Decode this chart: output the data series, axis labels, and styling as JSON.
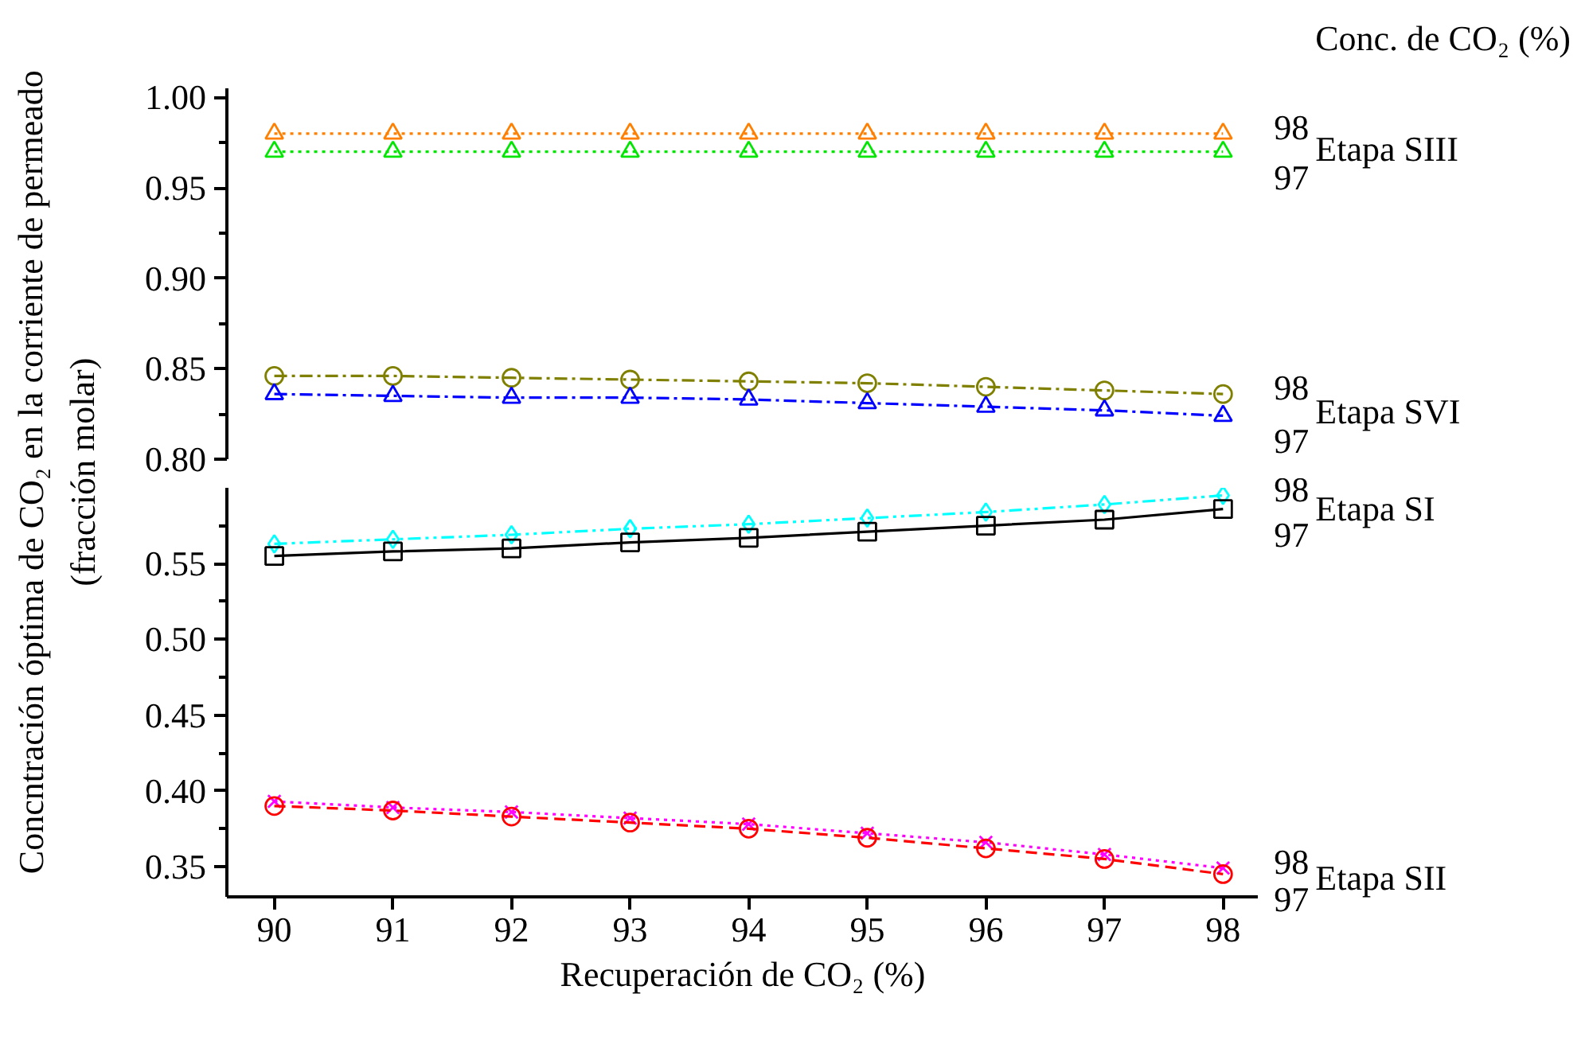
{
  "chart_data": [
    {
      "type": "line",
      "ylabel": "Concntración óptima de CO₂ en la corriente de permeado\n(fracción molar)",
      "annotations": [
        "Conc. de CO₂ (%)",
        "Etapa SIII",
        "Etapa SVI"
      ],
      "x": [
        90,
        91,
        92,
        93,
        94,
        95,
        96,
        97,
        98
      ],
      "ylim": [
        0.8,
        1.005
      ],
      "yticks": [
        {
          "value": 0.8,
          "label": "0.80"
        },
        {
          "value": 0.825,
          "label": null
        },
        0.85,
        {
          "value": 0.875,
          "label": null
        },
        {
          "value": 0.9,
          "label": "0.90"
        },
        {
          "value": 0.925,
          "label": null
        },
        0.95,
        {
          "value": 0.975,
          "label": null
        },
        {
          "value": 1.0,
          "label": "1.00"
        }
      ],
      "tick_labels": "y",
      "legend": false,
      "grid": false,
      "series": [
        {
          "name": "98",
          "color": "#ff8000",
          "marker": "triangle",
          "line_style": "dotted",
          "values": [
            0.98,
            0.98,
            0.98,
            0.98,
            0.98,
            0.98,
            0.98,
            0.98,
            0.98
          ]
        },
        {
          "name": "97",
          "color": "#00e600",
          "marker": "triangle",
          "line_style": "dotted",
          "values": [
            0.97,
            0.97,
            0.97,
            0.97,
            0.97,
            0.97,
            0.97,
            0.97,
            0.97
          ]
        },
        {
          "name": "98",
          "color": "#808000",
          "marker": "circle",
          "line_style": "dashdot",
          "values": [
            0.846,
            0.846,
            0.845,
            0.844,
            0.843,
            0.842,
            0.84,
            0.838,
            0.836
          ]
        },
        {
          "name": "97",
          "color": "#0000ff",
          "marker": "triangle",
          "line_style": "dashdot",
          "values": [
            0.836,
            0.835,
            0.834,
            0.834,
            0.833,
            0.831,
            0.829,
            0.827,
            0.824
          ]
        }
      ]
    },
    {
      "type": "line",
      "xlabel": "Recuperación de CO₂ (%)",
      "annotations": [
        "Etapa SI",
        "Etapa SII"
      ],
      "x": [
        90,
        91,
        92,
        93,
        94,
        95,
        96,
        97,
        98
      ],
      "xlim": [
        89.6,
        98.3
      ],
      "ylim": [
        0.33,
        0.6
      ],
      "xticks": [
        90,
        91,
        92,
        93,
        94,
        95,
        96,
        97,
        98
      ],
      "yticks": [
        0.35,
        {
          "value": 0.375,
          "label": null
        },
        {
          "value": 0.4,
          "label": "0.40"
        },
        {
          "value": 0.425,
          "label": null
        },
        0.45,
        {
          "value": 0.475,
          "label": null
        },
        {
          "value": 0.5,
          "label": "0.50"
        },
        {
          "value": 0.525,
          "label": null
        },
        0.55,
        {
          "value": 0.575,
          "label": null
        }
      ],
      "legend": false,
      "grid": false,
      "series": [
        {
          "name": "98",
          "color": "#00ffff",
          "marker": "diamond",
          "line_style": "dashdotdot",
          "values": [
            0.563,
            0.566,
            0.569,
            0.573,
            0.576,
            0.58,
            0.584,
            0.589,
            0.595
          ]
        },
        {
          "name": "97",
          "color": "#000000",
          "marker": "square",
          "line_style": "solid",
          "values": [
            0.555,
            0.558,
            0.56,
            0.564,
            0.567,
            0.571,
            0.575,
            0.579,
            0.586
          ]
        },
        {
          "name": "98",
          "color": "#ff00ff",
          "marker": "cross",
          "line_style": "dotted",
          "values": [
            0.393,
            0.389,
            0.386,
            0.382,
            0.378,
            0.372,
            0.366,
            0.358,
            0.349
          ]
        },
        {
          "name": "97",
          "color": "#ff0000",
          "marker": "circle",
          "line_style": "dashed",
          "values": [
            0.39,
            0.387,
            0.383,
            0.379,
            0.375,
            0.369,
            0.362,
            0.355,
            0.345
          ]
        }
      ]
    }
  ]
}
